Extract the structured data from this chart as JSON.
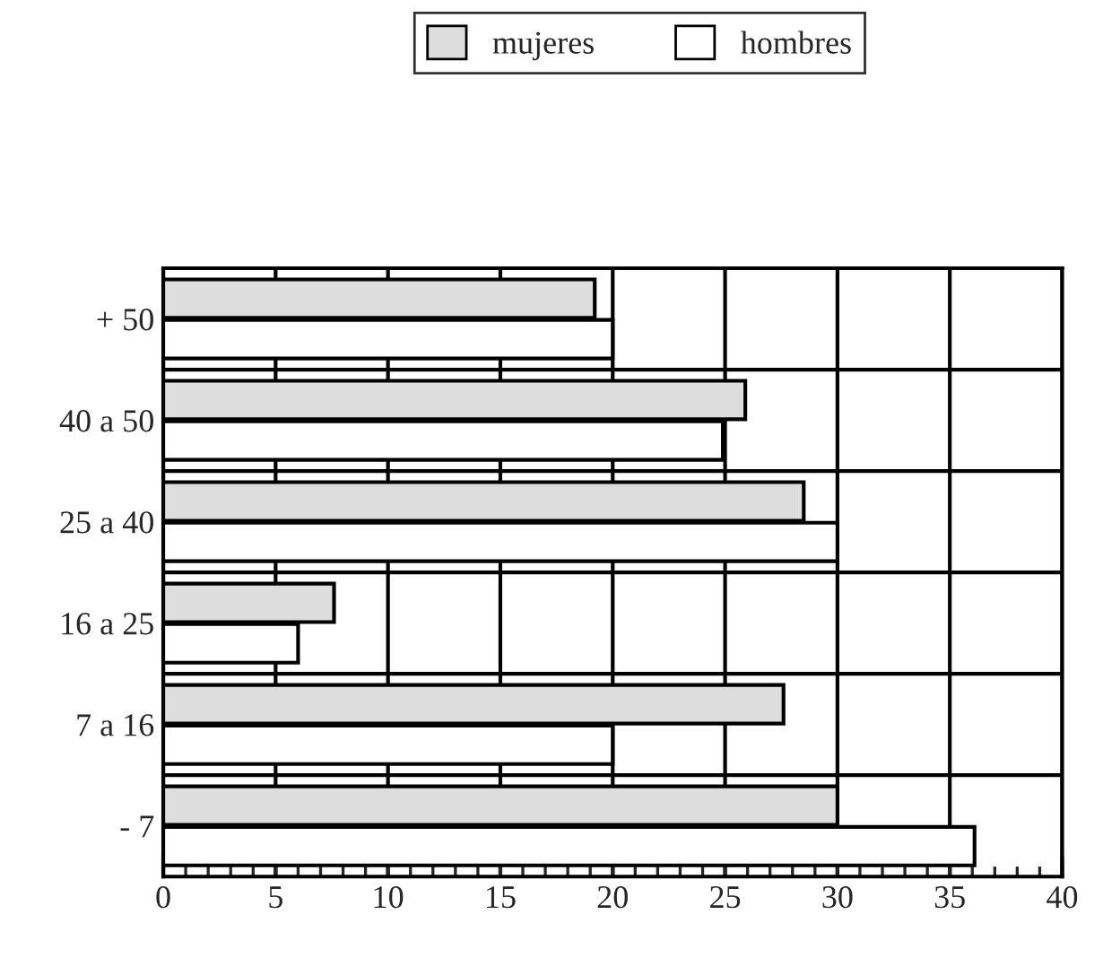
{
  "chart_data": {
    "type": "bar",
    "orientation": "horizontal",
    "categories": [
      "+ 50",
      "40 a 50",
      "25 a 40",
      "16 a 25",
      "7 a 16",
      "- 7"
    ],
    "series": [
      {
        "name": "mujeres",
        "color": "#dddddd",
        "values": [
          19.2,
          25.9,
          28.5,
          7.6,
          27.6,
          30
        ]
      },
      {
        "name": "hombres",
        "color": "#ffffff",
        "values": [
          20,
          24.9,
          30,
          6,
          20,
          36.1
        ]
      }
    ],
    "xlim": [
      0,
      40
    ],
    "xticks": [
      0,
      5,
      10,
      15,
      20,
      25,
      30,
      35,
      40
    ],
    "grid": true,
    "legend": "top"
  }
}
